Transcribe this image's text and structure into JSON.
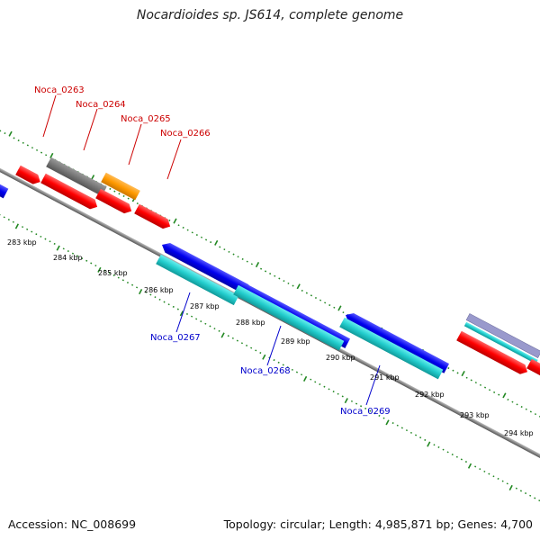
{
  "title": "Nocardioides sp. JS614, complete genome",
  "footer": {
    "accession": "Accession: NC_008699",
    "summary": "Topology: circular; Length: 4,985,871 bp; Genes: 4,700"
  },
  "colors": {
    "red": "#ff0000",
    "gray": "#777777",
    "orange": "#ff9900",
    "blue": "#0000ee",
    "cyan": "#22cccc",
    "purple": "#9999cc",
    "backbone": "#888888",
    "tick": "#228822",
    "label_top": "#cc0000",
    "label_bottom": "#0000cc"
  },
  "genes_top": [
    {
      "label": "Noca_0263"
    },
    {
      "label": "Noca_0264"
    },
    {
      "label": "Noca_0265"
    },
    {
      "label": "Noca_0266"
    }
  ],
  "genes_bottom": [
    {
      "label": "Noca_0267"
    },
    {
      "label": "Noca_0268"
    },
    {
      "label": "Noca_0269"
    }
  ],
  "kbp_ticks": [
    "283 kbp",
    "284 kbp",
    "285 kbp",
    "286 kbp",
    "287 kbp",
    "288 kbp",
    "289 kbp",
    "290 kbp",
    "291 kbp",
    "292 kbp",
    "293 kbp",
    "294 kbp"
  ]
}
